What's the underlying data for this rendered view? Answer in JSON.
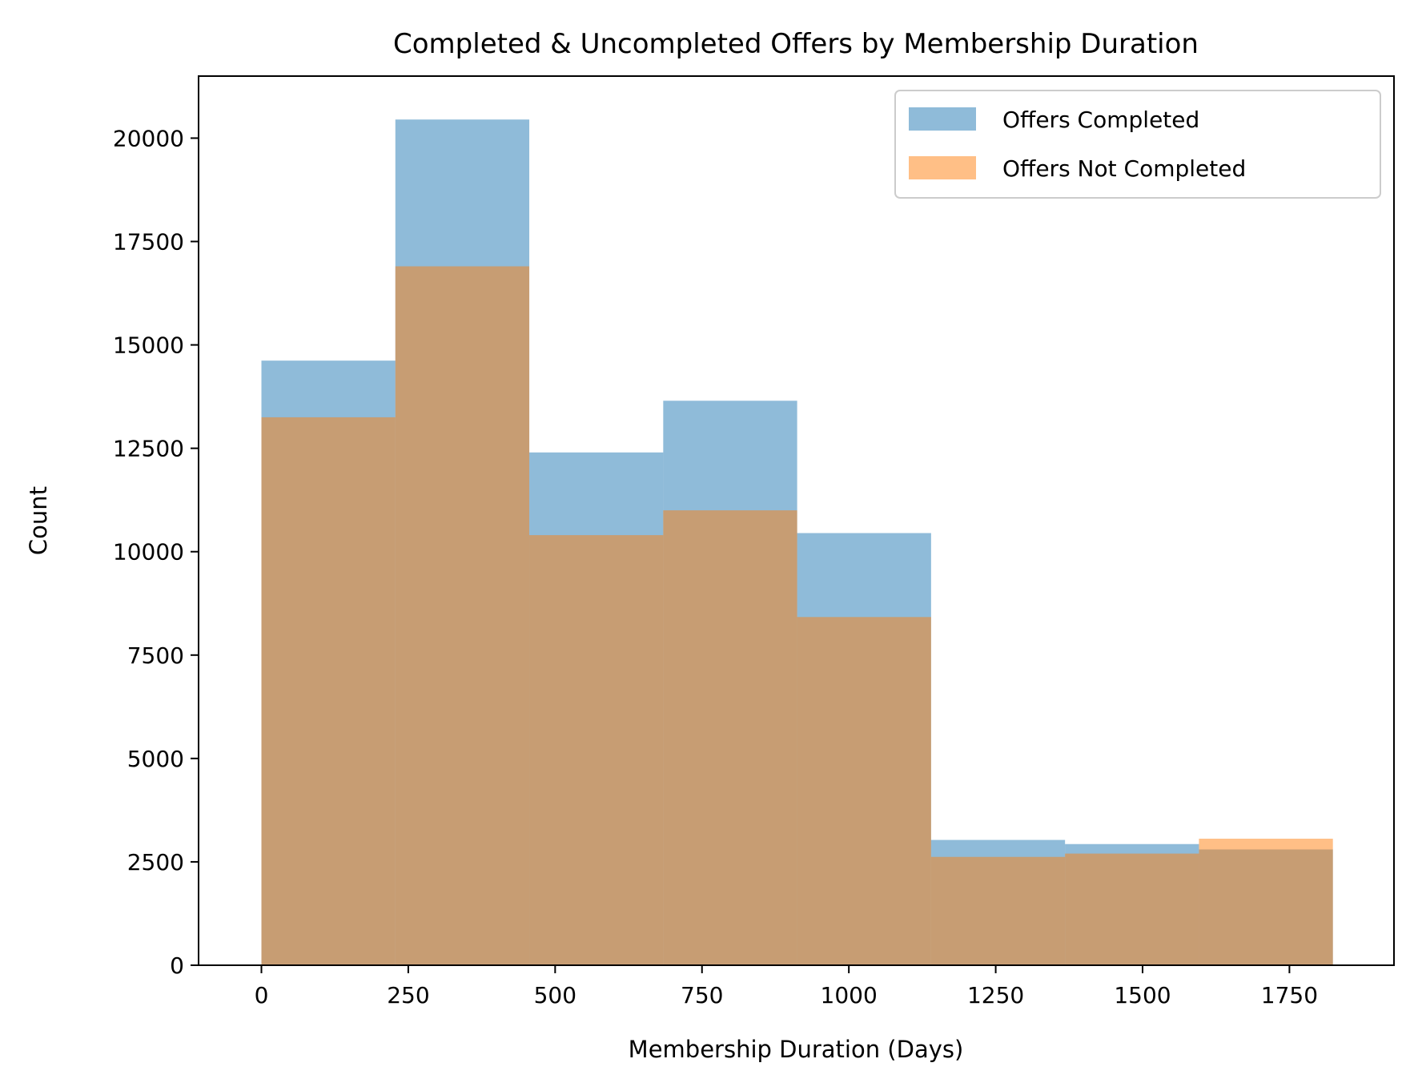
{
  "chart_data": {
    "type": "histogram",
    "title": "Completed & Uncompleted Offers by Membership Duration",
    "xlabel": "Membership Duration (Days)",
    "ylabel": "Count",
    "xlim": [
      -107,
      1928
    ],
    "ylim": [
      0,
      21500
    ],
    "xticks": [
      0,
      250,
      500,
      750,
      1000,
      1250,
      1500,
      1750
    ],
    "yticks": [
      0,
      2500,
      5000,
      7500,
      10000,
      12500,
      15000,
      17500,
      20000
    ],
    "bin_edges": [
      0,
      228,
      456,
      684,
      912,
      1140,
      1368,
      1596,
      1824
    ],
    "series": [
      {
        "name": "Offers Completed",
        "color": "#1f77b4",
        "alpha": 0.5,
        "values": [
          14620,
          20450,
          12400,
          13650,
          10450,
          3030,
          2930,
          2800
        ]
      },
      {
        "name": "Offers Not Completed",
        "color": "#ff7f0e",
        "alpha": 0.5,
        "values": [
          13250,
          16900,
          10400,
          11000,
          8420,
          2620,
          2700,
          3060
        ]
      }
    ],
    "grid": false,
    "legend": "top-right"
  }
}
